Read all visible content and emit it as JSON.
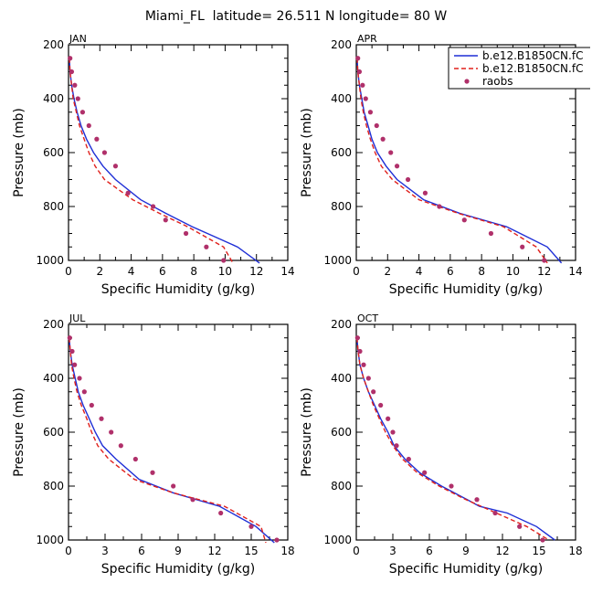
{
  "title": "Miami_FL  latitude= 26.511 N longitude= 80 W",
  "colors": {
    "model1": "#1f2fd6",
    "model2": "#e0201c",
    "raobs": "#b0306a"
  },
  "legend": {
    "entries": [
      {
        "label": "b.e12.B1850CN.fC",
        "style": "solid",
        "color": "#1f2fd6"
      },
      {
        "label": "b.e12.B1850CN.fC",
        "style": "dashed",
        "color": "#e0201c"
      },
      {
        "label": "raobs",
        "style": "dots",
        "color": "#b0306a"
      }
    ]
  },
  "chart_data": [
    {
      "type": "line",
      "title": "JAN",
      "xlabel": "Specific Humidity (g/kg)",
      "ylabel": "Pressure (mb)",
      "xlim": [
        0,
        14
      ],
      "ylim": [
        1000,
        200
      ],
      "xticks": [
        0,
        2,
        4,
        6,
        8,
        10,
        12,
        14
      ],
      "yticks": [
        200,
        400,
        600,
        800,
        1000
      ],
      "series": [
        {
          "name": "b.e12.B1850CN.fC",
          "style": "solid",
          "x": [
            0.05,
            0.1,
            0.2,
            0.35,
            0.55,
            0.8,
            1.15,
            1.6,
            2.2,
            3.0,
            4.6,
            6.2,
            7.9,
            10.8,
            12.2
          ],
          "y": [
            250,
            300,
            350,
            400,
            450,
            500,
            550,
            600,
            650,
            700,
            775,
            825,
            875,
            950,
            1010
          ]
        },
        {
          "name": "b.e12.B1850CN.fC",
          "style": "dashed",
          "x": [
            0.05,
            0.1,
            0.2,
            0.3,
            0.5,
            0.7,
            1.0,
            1.3,
            1.7,
            2.3,
            4.1,
            5.8,
            7.6,
            9.9,
            10.5
          ],
          "y": [
            250,
            300,
            350,
            400,
            450,
            500,
            550,
            600,
            650,
            700,
            775,
            825,
            875,
            950,
            1010
          ]
        },
        {
          "name": "raobs",
          "style": "dots",
          "x": [
            0.1,
            0.2,
            0.4,
            0.6,
            0.9,
            1.3,
            1.8,
            2.3,
            3.0,
            3.8,
            5.4,
            6.2,
            7.5,
            8.8,
            9.9
          ],
          "y": [
            250,
            300,
            350,
            400,
            450,
            500,
            550,
            600,
            650,
            750,
            800,
            850,
            900,
            950,
            1000
          ]
        }
      ]
    },
    {
      "type": "line",
      "title": "APR",
      "xlabel": "Specific Humidity (g/kg)",
      "ylabel": "Pressure (mb)",
      "xlim": [
        0,
        14
      ],
      "ylim": [
        1000,
        200
      ],
      "xticks": [
        0,
        2,
        4,
        6,
        8,
        10,
        12,
        14
      ],
      "yticks": [
        200,
        400,
        600,
        800,
        1000
      ],
      "series": [
        {
          "name": "b.e12.B1850CN.fC",
          "style": "solid",
          "x": [
            0.05,
            0.1,
            0.2,
            0.35,
            0.5,
            0.75,
            1.0,
            1.35,
            1.9,
            2.6,
            4.3,
            6.6,
            9.6,
            12.2,
            13.1
          ],
          "y": [
            250,
            300,
            350,
            400,
            450,
            500,
            550,
            600,
            650,
            700,
            775,
            825,
            875,
            950,
            1010
          ]
        },
        {
          "name": "b.e12.B1850CN.fC",
          "style": "dashed",
          "x": [
            0.05,
            0.1,
            0.2,
            0.3,
            0.45,
            0.65,
            0.9,
            1.2,
            1.6,
            2.3,
            4.0,
            6.5,
            9.4,
            11.5,
            12.2
          ],
          "y": [
            250,
            300,
            350,
            400,
            450,
            500,
            550,
            600,
            650,
            700,
            775,
            825,
            875,
            950,
            1010
          ]
        },
        {
          "name": "raobs",
          "style": "dots",
          "x": [
            0.1,
            0.2,
            0.4,
            0.6,
            0.9,
            1.3,
            1.7,
            2.2,
            2.6,
            3.3,
            4.4,
            5.3,
            6.9,
            8.6,
            10.6,
            12.0
          ],
          "y": [
            250,
            300,
            350,
            400,
            450,
            500,
            550,
            600,
            650,
            700,
            750,
            800,
            850,
            900,
            950,
            1000
          ]
        }
      ]
    },
    {
      "type": "line",
      "title": "JUL",
      "xlabel": "Specific Humidity (g/kg)",
      "ylabel": "Pressure (mb)",
      "xlim": [
        0,
        18
      ],
      "ylim": [
        1000,
        200
      ],
      "xticks": [
        0,
        3,
        6,
        9,
        12,
        15,
        18
      ],
      "yticks": [
        200,
        400,
        600,
        800,
        1000
      ],
      "series": [
        {
          "name": "b.e12.B1850CN.fC",
          "style": "solid",
          "x": [
            0.05,
            0.15,
            0.3,
            0.55,
            0.8,
            1.2,
            1.7,
            2.2,
            2.8,
            3.9,
            5.8,
            8.6,
            12.4,
            15.4,
            16.9
          ],
          "y": [
            250,
            300,
            350,
            400,
            450,
            500,
            550,
            600,
            650,
            700,
            775,
            825,
            875,
            950,
            1010
          ]
        },
        {
          "name": "b.e12.B1850CN.fC",
          "style": "dashed",
          "x": [
            0.05,
            0.15,
            0.25,
            0.45,
            0.7,
            1.05,
            1.5,
            1.9,
            2.4,
            3.3,
            5.4,
            8.6,
            12.8,
            15.8,
            16.2
          ],
          "y": [
            250,
            300,
            350,
            400,
            450,
            500,
            550,
            600,
            650,
            700,
            775,
            825,
            875,
            950,
            1010
          ]
        },
        {
          "name": "raobs",
          "style": "dots",
          "x": [
            0.1,
            0.3,
            0.5,
            0.9,
            1.3,
            1.9,
            2.7,
            3.5,
            4.3,
            5.5,
            6.9,
            8.6,
            10.2,
            12.5,
            15.0,
            17.1
          ],
          "y": [
            250,
            300,
            350,
            400,
            450,
            500,
            550,
            600,
            650,
            700,
            750,
            800,
            850,
            900,
            950,
            1000
          ]
        }
      ]
    },
    {
      "type": "line",
      "title": "OCT",
      "xlabel": "Specific Humidity (g/kg)",
      "ylabel": "Pressure (mb)",
      "xlim": [
        0,
        18
      ],
      "ylim": [
        1000,
        200
      ],
      "xticks": [
        0,
        3,
        6,
        9,
        12,
        15,
        18
      ],
      "yticks": [
        200,
        400,
        600,
        800,
        1000
      ],
      "series": [
        {
          "name": "b.e12.B1850CN.fC",
          "style": "solid",
          "x": [
            0.05,
            0.15,
            0.3,
            0.6,
            1.0,
            1.5,
            2.0,
            2.6,
            3.1,
            4.0,
            5.2,
            7.0,
            9.1,
            10.1,
            12.4,
            14.8,
            16.3
          ],
          "y": [
            250,
            300,
            350,
            400,
            450,
            500,
            550,
            600,
            650,
            700,
            750,
            800,
            850,
            875,
            900,
            950,
            1000
          ]
        },
        {
          "name": "b.e12.B1850CN.fC",
          "style": "dashed",
          "x": [
            0.05,
            0.15,
            0.3,
            0.6,
            1.0,
            1.4,
            1.9,
            2.4,
            3.0,
            3.8,
            5.0,
            6.8,
            9.0,
            11.5,
            14.0,
            15.8
          ],
          "y": [
            250,
            300,
            350,
            400,
            450,
            500,
            550,
            600,
            650,
            700,
            750,
            800,
            850,
            900,
            950,
            1000
          ]
        },
        {
          "name": "raobs",
          "style": "dots",
          "x": [
            0.1,
            0.3,
            0.6,
            1.0,
            1.4,
            2.0,
            2.6,
            3.0,
            3.3,
            4.3,
            5.6,
            7.8,
            9.9,
            11.4,
            13.4,
            15.3
          ],
          "y": [
            250,
            300,
            350,
            400,
            450,
            500,
            550,
            600,
            650,
            700,
            750,
            800,
            850,
            900,
            950,
            1000
          ]
        }
      ]
    }
  ]
}
